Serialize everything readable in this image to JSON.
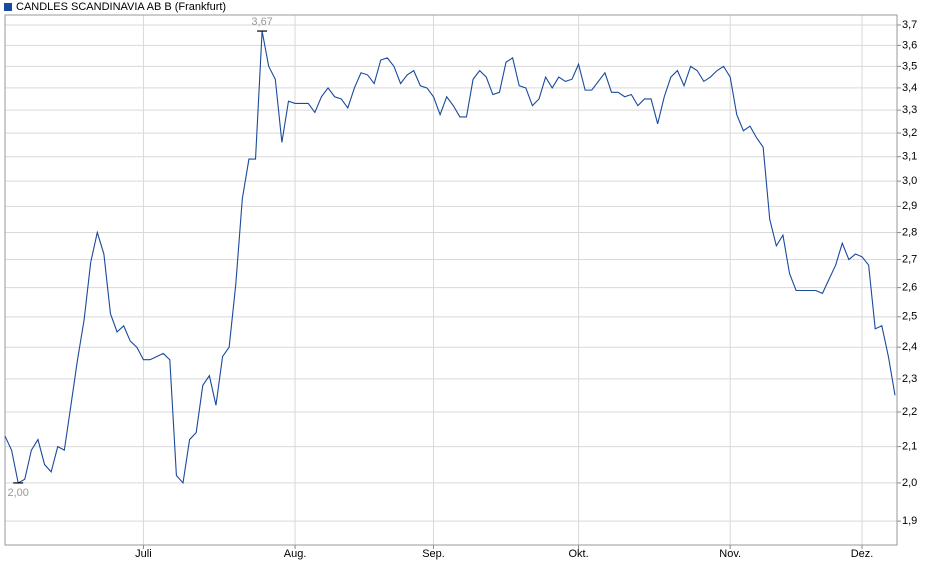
{
  "chart_data": {
    "type": "line",
    "log_scale": true,
    "grid": true,
    "legend": "top-left",
    "categories": [
      null,
      null,
      null,
      null,
      null,
      null,
      null,
      null,
      null,
      null,
      null,
      null,
      null,
      null,
      null,
      null,
      null,
      null,
      null,
      null,
      null,
      "Juli",
      null,
      null,
      null,
      null,
      null,
      null,
      null,
      null,
      null,
      null,
      null,
      null,
      null,
      null,
      null,
      null,
      null,
      null,
      null,
      null,
      null,
      null,
      "Aug.",
      null,
      null,
      null,
      null,
      null,
      null,
      null,
      null,
      null,
      null,
      null,
      null,
      null,
      null,
      null,
      null,
      null,
      null,
      null,
      null,
      "Sep.",
      null,
      null,
      null,
      null,
      null,
      null,
      null,
      null,
      null,
      null,
      null,
      null,
      null,
      null,
      null,
      null,
      null,
      null,
      null,
      null,
      null,
      "Okt.",
      null,
      null,
      null,
      null,
      null,
      null,
      null,
      null,
      null,
      null,
      null,
      null,
      null,
      null,
      null,
      null,
      null,
      null,
      null,
      null,
      null,
      null,
      "Nov.",
      null,
      null,
      null,
      null,
      null,
      null,
      null,
      null,
      null,
      null,
      null,
      null,
      null,
      null,
      null,
      null,
      null,
      null,
      null,
      "Dez.",
      null,
      null,
      null,
      null,
      null
    ],
    "series": [
      {
        "name": "CANDLES SCANDINAVIA AB B (Frankfurt)",
        "color": "#1a4a9c",
        "values": [
          2.13,
          2.09,
          2.0,
          2.01,
          2.09,
          2.12,
          2.05,
          2.03,
          2.1,
          2.09,
          2.22,
          2.36,
          2.49,
          2.69,
          2.8,
          2.72,
          2.51,
          2.45,
          2.47,
          2.42,
          2.4,
          2.36,
          2.36,
          2.37,
          2.38,
          2.36,
          2.02,
          2.0,
          2.12,
          2.14,
          2.28,
          2.31,
          2.22,
          2.37,
          2.4,
          2.61,
          2.93,
          3.09,
          3.09,
          3.67,
          3.5,
          3.44,
          3.16,
          3.34,
          3.33,
          3.33,
          3.33,
          3.29,
          3.36,
          3.4,
          3.36,
          3.35,
          3.31,
          3.4,
          3.47,
          3.46,
          3.42,
          3.53,
          3.54,
          3.5,
          3.42,
          3.46,
          3.48,
          3.41,
          3.4,
          3.36,
          3.28,
          3.36,
          3.32,
          3.27,
          3.27,
          3.44,
          3.48,
          3.45,
          3.37,
          3.38,
          3.52,
          3.54,
          3.41,
          3.4,
          3.32,
          3.35,
          3.45,
          3.4,
          3.45,
          3.43,
          3.44,
          3.51,
          3.39,
          3.39,
          3.43,
          3.47,
          3.38,
          3.38,
          3.36,
          3.37,
          3.32,
          3.35,
          3.35,
          3.24,
          3.36,
          3.45,
          3.48,
          3.41,
          3.5,
          3.48,
          3.43,
          3.45,
          3.48,
          3.5,
          3.45,
          3.28,
          3.21,
          3.23,
          3.18,
          3.14,
          2.85,
          2.75,
          2.79,
          2.65,
          2.59,
          2.59,
          2.59,
          2.59,
          2.58,
          2.63,
          2.68,
          2.76,
          2.7,
          2.72,
          2.71,
          2.68,
          2.46,
          2.47,
          2.37,
          2.25
        ],
        "value_labels": [
          null,
          null,
          "2,00",
          null,
          null,
          null,
          null,
          null,
          null,
          null,
          null,
          null,
          null,
          null,
          null,
          null,
          null,
          null,
          null,
          null,
          null,
          null,
          null,
          null,
          null,
          null,
          null,
          null,
          null,
          null,
          null,
          null,
          null,
          null,
          null,
          null,
          null,
          null,
          null,
          "3,67",
          null,
          null,
          null,
          null,
          null,
          null,
          null,
          null,
          null,
          null,
          null,
          null,
          null,
          null,
          null,
          null,
          null,
          null,
          null,
          null,
          null,
          null,
          null,
          null,
          null,
          null,
          null,
          null,
          null,
          null,
          null,
          null,
          null,
          null,
          null,
          null,
          null,
          null,
          null,
          null,
          null,
          null,
          null,
          null,
          null,
          null,
          null,
          null,
          null,
          null,
          null,
          null,
          null,
          null,
          null,
          null,
          null,
          null,
          null,
          null,
          null,
          null,
          null,
          null,
          null,
          null,
          null,
          null,
          null,
          null,
          null,
          null,
          null,
          null,
          null,
          null,
          null,
          null,
          null,
          null,
          null,
          null,
          null,
          null,
          null,
          null,
          null,
          null,
          null,
          null,
          null,
          null,
          null,
          null,
          null,
          null
        ]
      }
    ],
    "ylim": [
      1.84,
      3.75
    ],
    "yticks": [
      {
        "value": 1.9,
        "label": "1,9"
      },
      {
        "value": 2.0,
        "label": "2,0"
      },
      {
        "value": 2.1,
        "label": "2,1"
      },
      {
        "value": 2.2,
        "label": "2,2"
      },
      {
        "value": 2.3,
        "label": "2,3"
      },
      {
        "value": 2.4,
        "label": "2,4"
      },
      {
        "value": 2.5,
        "label": "2,5"
      },
      {
        "value": 2.6,
        "label": "2,6"
      },
      {
        "value": 2.7,
        "label": "2,7"
      },
      {
        "value": 2.8,
        "label": "2,8"
      },
      {
        "value": 2.9,
        "label": "2,9"
      },
      {
        "value": 3.0,
        "label": "3,0"
      },
      {
        "value": 3.1,
        "label": "3,1"
      },
      {
        "value": 3.2,
        "label": "3,2"
      },
      {
        "value": 3.3,
        "label": "3,3"
      },
      {
        "value": 3.4,
        "label": "3,4"
      },
      {
        "value": 3.5,
        "label": "3,5"
      },
      {
        "value": 3.6,
        "label": "3,6"
      },
      {
        "value": 3.7,
        "label": "3,7"
      }
    ]
  }
}
